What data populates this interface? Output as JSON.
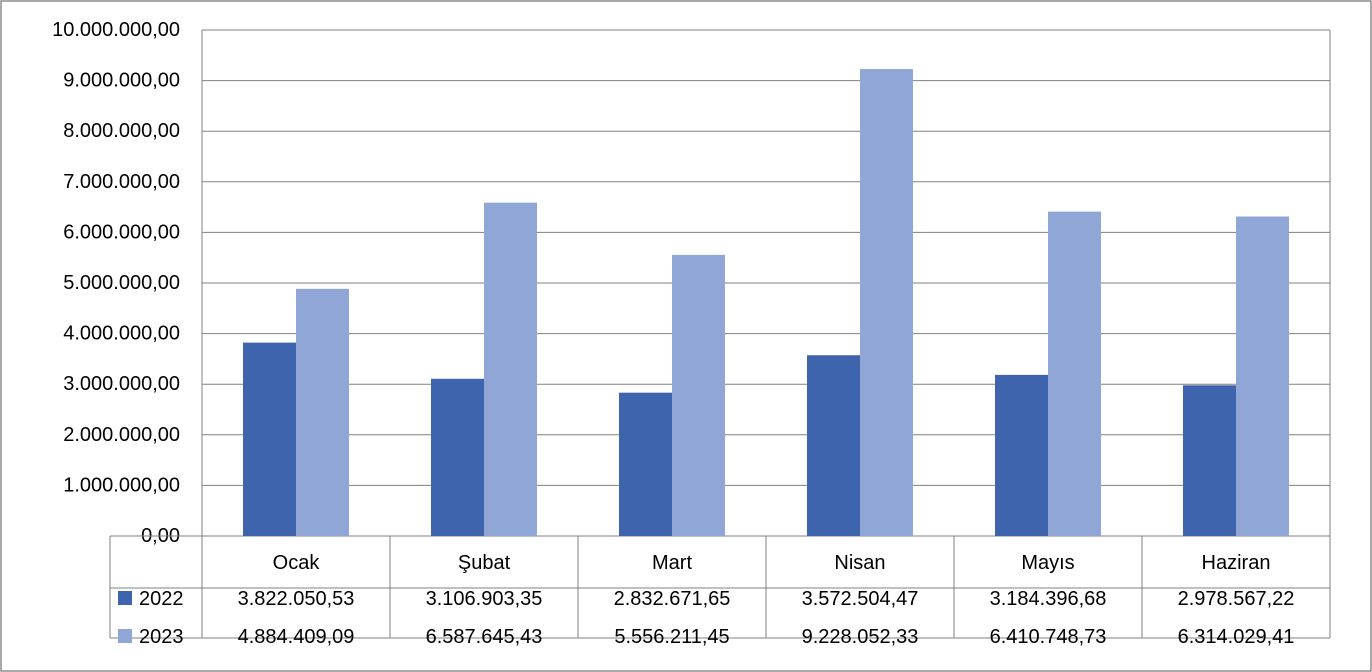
{
  "chart_data": {
    "type": "bar",
    "categories": [
      "Ocak",
      "Şubat",
      "Mart",
      "Nisan",
      "Mayıs",
      "Haziran"
    ],
    "series": [
      {
        "name": "2022",
        "color": "#3d64ac",
        "values": [
          3822050.53,
          3106903.35,
          2832671.65,
          3572504.47,
          3184396.68,
          2978567.22
        ],
        "labels": [
          "3.822.050,53",
          "3.106.903,35",
          "2.832.671,65",
          "3.572.504,47",
          "3.184.396,68",
          "2.978.567,22"
        ]
      },
      {
        "name": "2023",
        "color": "#8fa6d6",
        "values": [
          4884409.09,
          6587645.43,
          5556211.45,
          9228052.33,
          6410748.73,
          6314029.41
        ],
        "labels": [
          "4.884.409,09",
          "6.587.645,43",
          "5.556.211,45",
          "9.228.052,33",
          "6.410.748,73",
          "6.314.029,41"
        ]
      }
    ],
    "yticks": [
      0,
      1000000,
      2000000,
      3000000,
      4000000,
      5000000,
      6000000,
      7000000,
      8000000,
      9000000,
      10000000
    ],
    "ytick_labels": [
      "0,00",
      "1.000.000,00",
      "2.000.000,00",
      "3.000.000,00",
      "4.000.000,00",
      "5.000.000,00",
      "6.000.000,00",
      "7.000.000,00",
      "8.000.000,00",
      "9.000.000,00",
      "10.000.000,00"
    ],
    "ylim": [
      0,
      10000000
    ],
    "grid": true,
    "data_table": true,
    "gridline_color": "#808080",
    "title": "",
    "xlabel": "",
    "ylabel": ""
  }
}
